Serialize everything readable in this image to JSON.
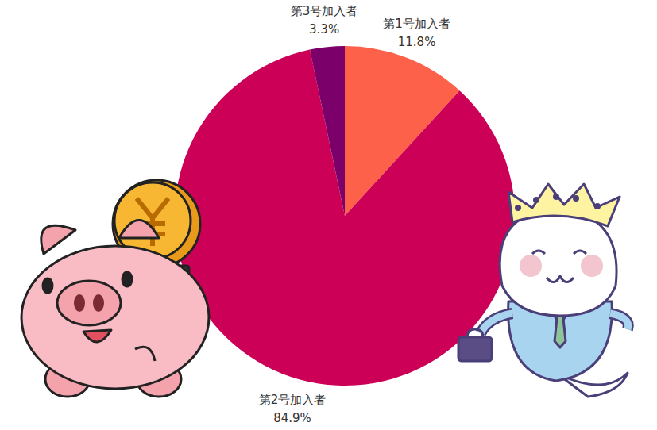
{
  "chart_data": {
    "type": "pie",
    "categories": [
      "第1号加入者",
      "第2号加入者",
      "第3号加入者"
    ],
    "values": [
      11.8,
      84.9,
      3.3
    ],
    "value_labels": [
      "11.8%",
      "84.9%",
      "3.3%"
    ],
    "colors": [
      "#fe614a",
      "#cc0056",
      "#7b0069"
    ],
    "data_labels": true
  }
}
